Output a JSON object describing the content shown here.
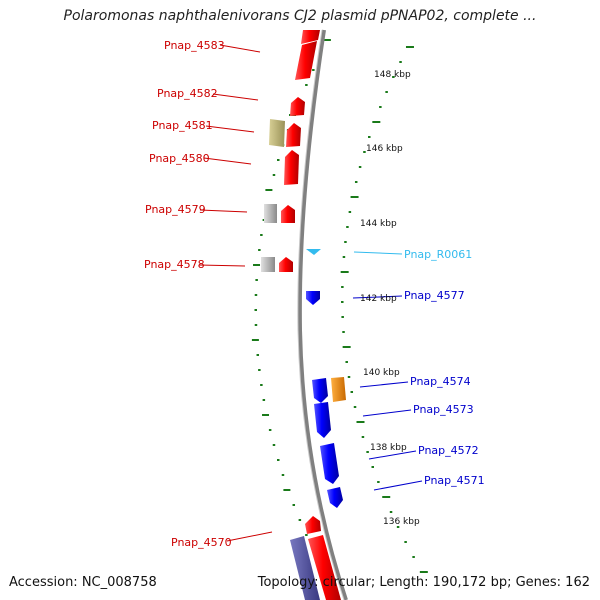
{
  "title": "Polaromonas naphthalenivorans CJ2 plasmid pPNAP02, complete ...",
  "footer": {
    "accession": "Accession: NC_008758",
    "summary": "Topology: circular; Length: 190,172 bp; Genes: 162"
  },
  "colors": {
    "forward_gene": "#ee0000",
    "reverse_gene": "#0000ee",
    "trna": "#33bbee",
    "backbone": "#808080",
    "ruler_tick": "#1a7a1a",
    "olive_feature": "#b8b070",
    "gray_feature": "#b0b0b0",
    "orange_feature": "#f08c00",
    "purple_feature": "#5050a0"
  },
  "ruler_labels": [
    "148 kbp",
    "146 kbp",
    "144 kbp",
    "142 kbp",
    "140 kbp",
    "138 kbp",
    "136 kbp"
  ],
  "left_labels": [
    {
      "text": "Pnap_4583",
      "color": "#cc0000"
    },
    {
      "text": "Pnap_4582",
      "color": "#cc0000"
    },
    {
      "text": "Pnap_4581",
      "color": "#cc0000"
    },
    {
      "text": "Pnap_4580",
      "color": "#cc0000"
    },
    {
      "text": "Pnap_4579",
      "color": "#cc0000"
    },
    {
      "text": "Pnap_4578",
      "color": "#cc0000"
    },
    {
      "text": "Pnap_4570",
      "color": "#cc0000"
    }
  ],
  "right_labels": [
    {
      "text": "Pnap_R0061",
      "color": "#33bbee"
    },
    {
      "text": "Pnap_4577",
      "color": "#0000cc"
    },
    {
      "text": "Pnap_4574",
      "color": "#0000cc"
    },
    {
      "text": "Pnap_4573",
      "color": "#0000cc"
    },
    {
      "text": "Pnap_4572",
      "color": "#0000cc"
    },
    {
      "text": "Pnap_4571",
      "color": "#0000cc"
    }
  ]
}
